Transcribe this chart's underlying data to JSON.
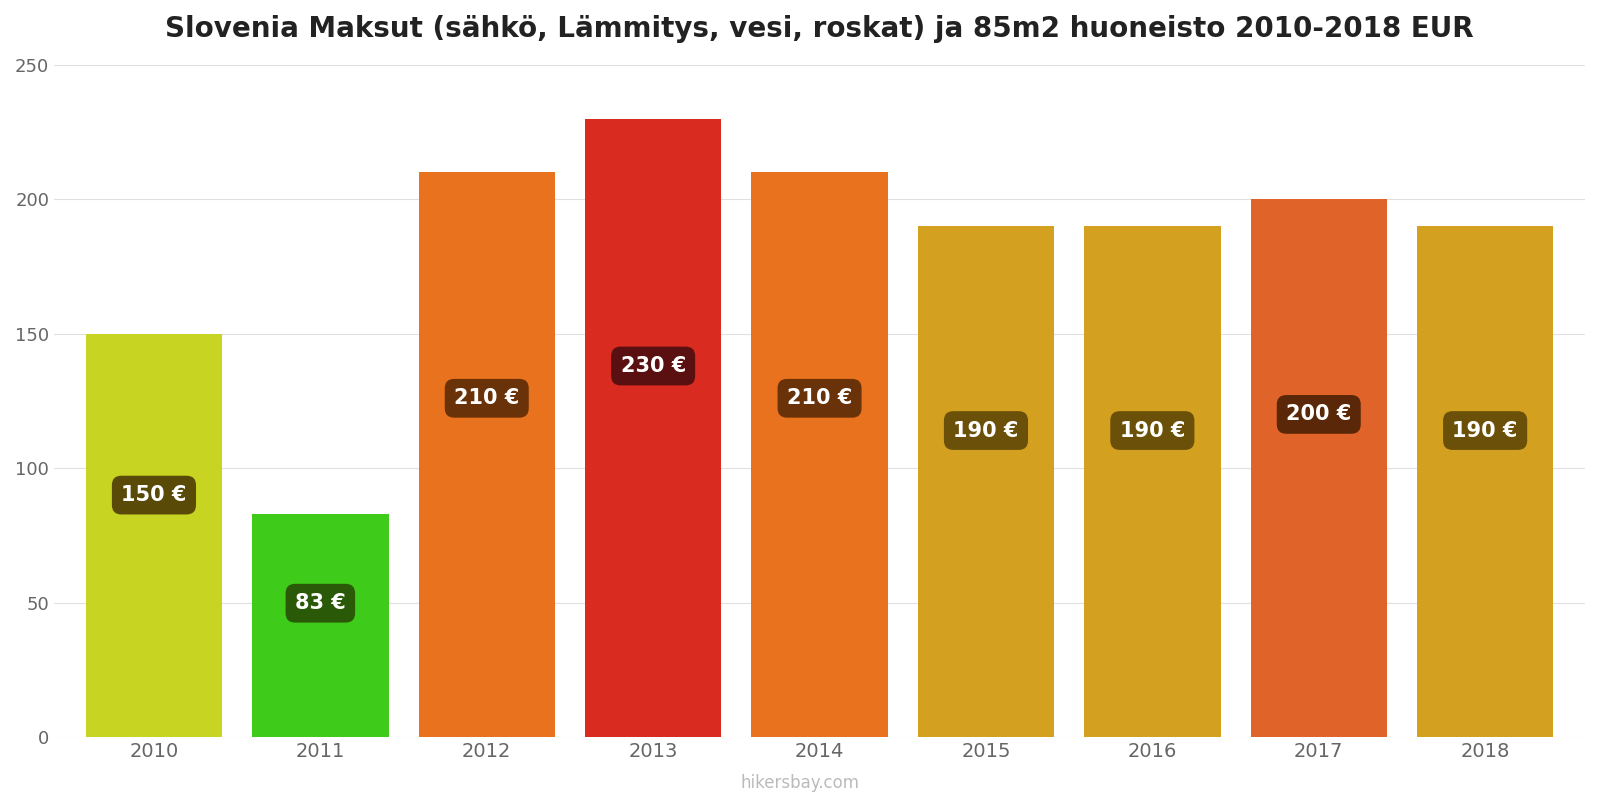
{
  "title": "Slovenia Maksut (sähkö, Lämmitys, vesi, roskat) ja 85m2 huoneisto 2010-2018 EUR",
  "years": [
    2010,
    2011,
    2012,
    2013,
    2014,
    2015,
    2016,
    2017,
    2018
  ],
  "values": [
    150,
    83,
    210,
    230,
    210,
    190,
    190,
    200,
    190
  ],
  "bar_colors": [
    "#c8d422",
    "#3ecb1a",
    "#e8721e",
    "#d92b20",
    "#e8721e",
    "#d4a020",
    "#d4a020",
    "#e0642a",
    "#d4a020"
  ],
  "label_bg_colors": [
    "#5a4a08",
    "#2a5a08",
    "#6a3208",
    "#5a1010",
    "#6a3208",
    "#6a5008",
    "#6a5008",
    "#5a2808",
    "#6a5008"
  ],
  "label_text_color": "#ffffff",
  "ylabel_values": [
    0,
    50,
    100,
    150,
    200,
    250
  ],
  "ylim": [
    0,
    250
  ],
  "background_color": "#ffffff",
  "watermark": "hikersbay.com",
  "title_fontsize": 20,
  "bar_width": 0.82
}
